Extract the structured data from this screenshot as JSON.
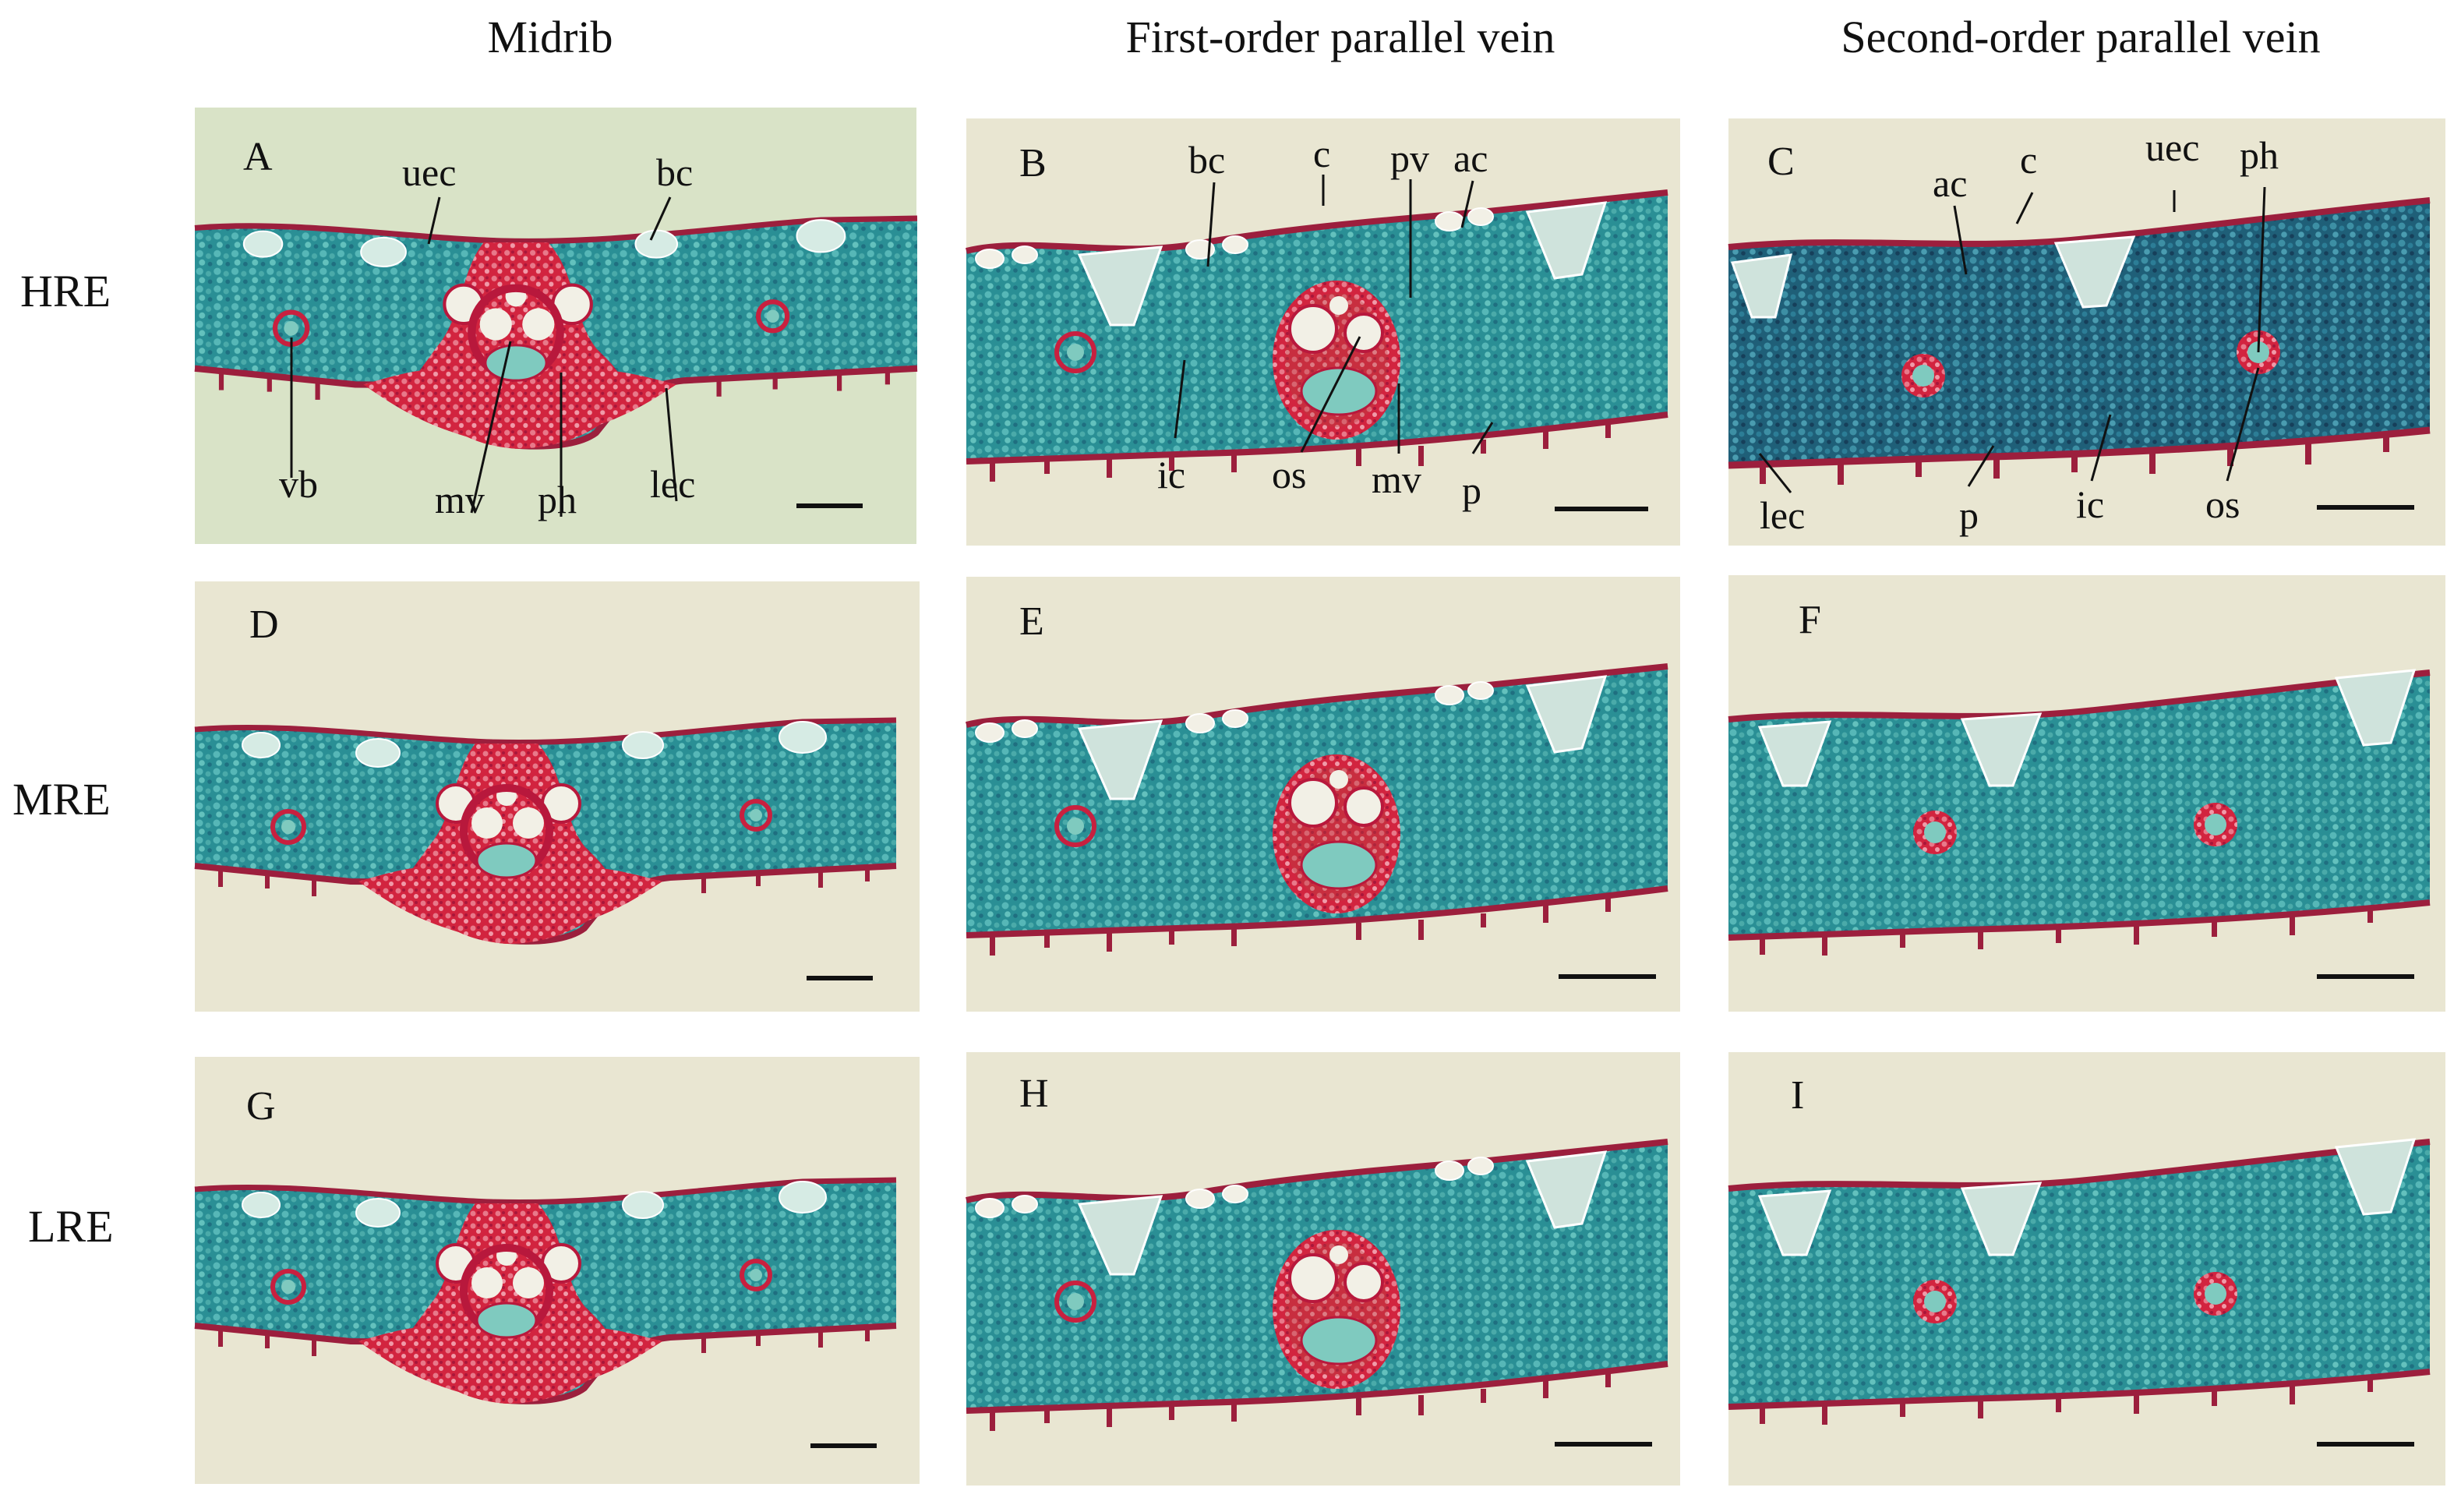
{
  "columns": [
    "Midrib",
    "First-order parallel vein",
    "Second-order parallel vein"
  ],
  "rows": [
    "HRE",
    "MRE",
    "LRE"
  ],
  "panels": {
    "A": {
      "letter": "A",
      "labels": [
        "uec",
        "bc",
        "vb",
        "mv",
        "ph",
        "lec"
      ]
    },
    "B": {
      "letter": "B",
      "labels": [
        "bc",
        "c",
        "pv",
        "ac",
        "ic",
        "os",
        "mv",
        "p"
      ]
    },
    "C": {
      "letter": "C",
      "labels": [
        "ac",
        "c",
        "uec",
        "ph",
        "lec",
        "p",
        "ic",
        "os"
      ]
    },
    "D": {
      "letter": "D"
    },
    "E": {
      "letter": "E"
    },
    "F": {
      "letter": "F"
    },
    "G": {
      "letter": "G"
    },
    "H": {
      "letter": "H"
    },
    "I": {
      "letter": "I"
    }
  },
  "colors": {
    "panel_bg": "#e9e6d2",
    "panel_bg_A": "#d9e3c7",
    "tissue": "#2a8f95",
    "tissue_dark": "#1f5f78",
    "vein_red": "#d2243f",
    "cuticle": "#9c1f3d",
    "bulliform": "#cfe3dc"
  }
}
